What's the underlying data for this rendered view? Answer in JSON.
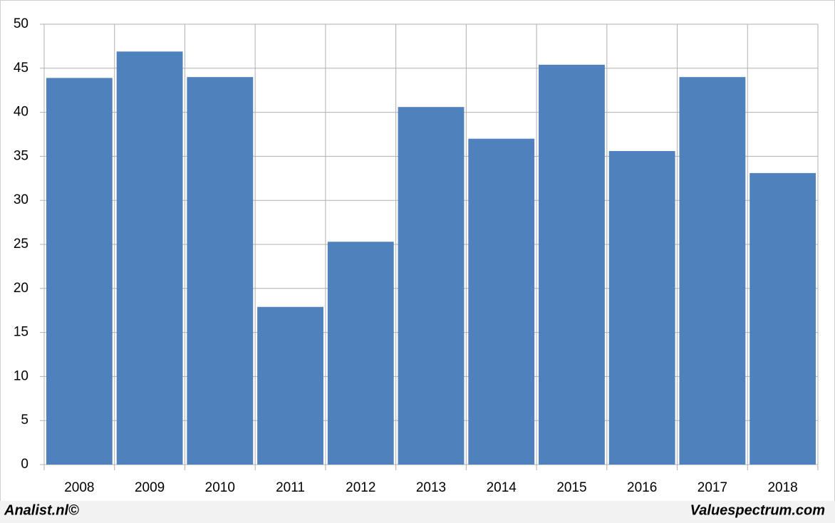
{
  "chart_data": {
    "type": "bar",
    "categories": [
      "2008",
      "2009",
      "2010",
      "2011",
      "2012",
      "2013",
      "2014",
      "2015",
      "2016",
      "2017",
      "2018"
    ],
    "values": [
      43.9,
      46.9,
      44.0,
      17.9,
      25.3,
      40.6,
      37.0,
      45.4,
      35.6,
      44.0,
      33.1
    ],
    "color": "#4f81bd",
    "ylim": [
      0,
      50
    ],
    "yticks": [
      0,
      5,
      10,
      15,
      20,
      25,
      30,
      35,
      40,
      45,
      50
    ],
    "grid": true,
    "sources": [
      "Analist.nl©",
      "Valuespectrum.com"
    ]
  }
}
